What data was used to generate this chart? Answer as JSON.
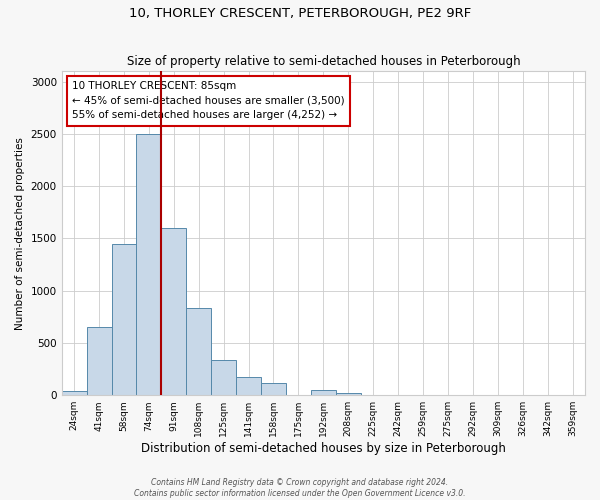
{
  "title": "10, THORLEY CRESCENT, PETERBOROUGH, PE2 9RF",
  "subtitle": "Size of property relative to semi-detached houses in Peterborough",
  "xlabel": "Distribution of semi-detached houses by size in Peterborough",
  "ylabel": "Number of semi-detached properties",
  "footnote1": "Contains HM Land Registry data © Crown copyright and database right 2024.",
  "footnote2": "Contains public sector information licensed under the Open Government Licence v3.0.",
  "categories": [
    "24sqm",
    "41sqm",
    "58sqm",
    "74sqm",
    "91sqm",
    "108sqm",
    "125sqm",
    "141sqm",
    "158sqm",
    "175sqm",
    "192sqm",
    "208sqm",
    "225sqm",
    "242sqm",
    "259sqm",
    "275sqm",
    "292sqm",
    "309sqm",
    "326sqm",
    "342sqm",
    "359sqm"
  ],
  "values": [
    40,
    650,
    1450,
    2500,
    1600,
    830,
    340,
    170,
    120,
    5,
    50,
    20,
    5,
    0,
    0,
    5,
    0,
    0,
    0,
    0,
    0
  ],
  "bar_color": "#c8d8e8",
  "bar_edge_color": "#5588aa",
  "vline_x_index": 4,
  "vline_color": "#aa0000",
  "annotation_text": "10 THORLEY CRESCENT: 85sqm\n← 45% of semi-detached houses are smaller (3,500)\n55% of semi-detached houses are larger (4,252) →",
  "annotation_box_color": "#ffffff",
  "annotation_box_edge_color": "#cc0000",
  "ylim": [
    0,
    3100
  ],
  "yticks": [
    0,
    500,
    1000,
    1500,
    2000,
    2500,
    3000
  ],
  "background_color": "#f7f7f7",
  "plot_background_color": "#ffffff",
  "grid_color": "#cccccc"
}
